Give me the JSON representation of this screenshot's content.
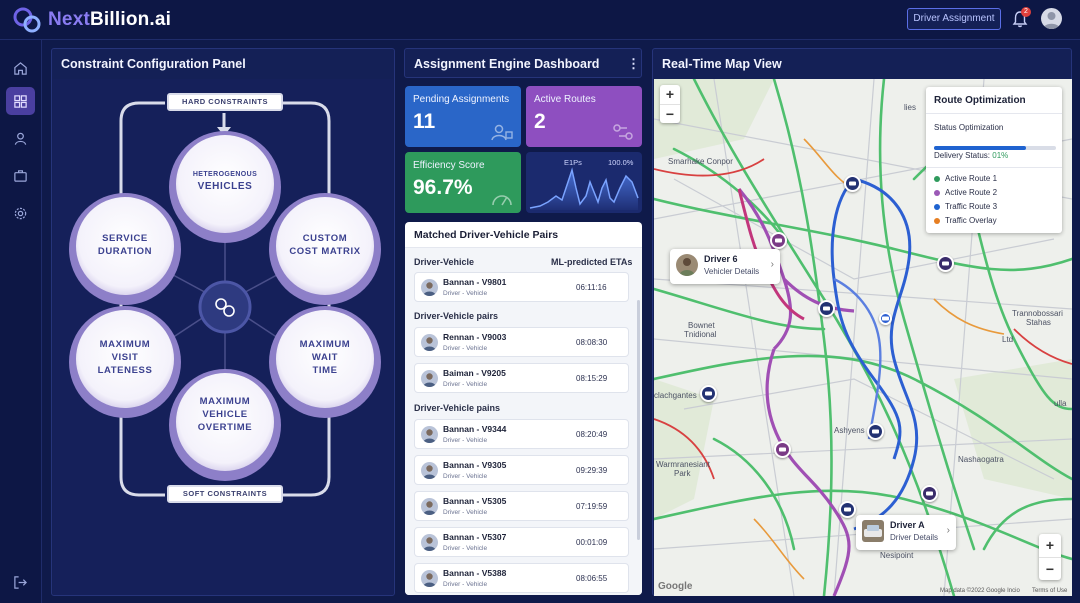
{
  "app": {
    "logo_text_a": "Next",
    "logo_text_b": "Billion.ai"
  },
  "header": {
    "assign_button": "Driver Assignment",
    "notification_count": "2"
  },
  "sidebar": {
    "items": [
      "home-icon",
      "dashboard-icon",
      "user-icon",
      "briefcase-icon",
      "gear-icon"
    ],
    "logout": "logout-icon"
  },
  "constraint_panel": {
    "title": "Constraint Configuration Panel",
    "hard_label": "HARD CONSTRAINTS",
    "soft_label": "SOFT CONSTRAINTS",
    "circles": {
      "heterogenous": [
        "HETEROGENOUS",
        "VEHICLES"
      ],
      "service": [
        "SERVICE",
        "DURATION"
      ],
      "custom": [
        "CUSTOM",
        "COST MATRIX"
      ],
      "visit": [
        "MAXIMUM",
        "VISIT",
        "LATENESS"
      ],
      "wait": [
        "MAXIMUM",
        "WAIT",
        "TIME"
      ],
      "overtime": [
        "MAXIMUM",
        "VEHICLE",
        "OVERTIME"
      ]
    }
  },
  "engine": {
    "title": "Assignment Engine Dashboard",
    "pending": {
      "label": "Pending Assignments",
      "value": "11"
    },
    "routes": {
      "label": "Active Routes",
      "value": "2"
    },
    "efficiency": {
      "label": "Efficiency Score",
      "value": "96.7%"
    },
    "mini_chart": {
      "label_left": "E1Ps",
      "label_right": "100.0%"
    }
  },
  "matched": {
    "title": "Matched Driver-Vehicle Pairs",
    "section1": "Driver-Vehicle",
    "col_eta": "ML-predicted ETAs",
    "section2": "Driver-Vehicle pairs",
    "section3": "Driver-Vehicle pains",
    "row_sub": "Driver - Vehicle",
    "rows": [
      {
        "name": "Bannan - V9801",
        "time": "06:11:16"
      },
      {
        "name": "Rennan - V9003",
        "time": "08:08:30"
      },
      {
        "name": "Baiman - V9205",
        "time": "08:15:29"
      },
      {
        "name": "Bannan - V9344",
        "time": "08:20:49"
      },
      {
        "name": "Bannan - V9305",
        "time": "09:29:39"
      },
      {
        "name": "Bannan - V5305",
        "time": "07:19:59"
      },
      {
        "name": "Bannan - V5307",
        "time": "00:01:09"
      },
      {
        "name": "Bannan - V5388",
        "time": "08:06:55"
      }
    ]
  },
  "map": {
    "title": "Real-Time Map View",
    "legend": {
      "title": "Route Optimization",
      "status": "Status Optimization",
      "status_progress": 0.75,
      "delivery_label": "Delivery Status:",
      "delivery_value": "01%",
      "items": [
        {
          "label": "Active Route 1",
          "color": "#2e9a5c"
        },
        {
          "label": "Active Route 2",
          "color": "#9b59b6"
        },
        {
          "label": "Traffic Route 3",
          "color": "#1f63d0"
        },
        {
          "label": "Traffic Overlay",
          "color": "#e67e22"
        }
      ]
    },
    "callout1": {
      "name": "Driver 6",
      "sub": "Vehicler Details"
    },
    "callout2": {
      "name": "Driver A",
      "sub": "Driver Details"
    },
    "places": {
      "smarhake": "Smarhake Conpor",
      "bownet": "Bownet",
      "tnidional": "Tnidional",
      "trannobossari": "Trannobossari",
      "stahas": "Stahas",
      "clachgantes": "clachgantes",
      "ashyens": "Ashyens",
      "warmranesiant": "Warmranesiant",
      "park": "Park",
      "nashaogatra": "Nashaogatra",
      "nesipoint": "Nesipoint",
      "lies": "lies",
      "ltd": "Ltd",
      "ulla": "ulla"
    },
    "attribution": "Map data ©2022 Google Incio",
    "terms": "Terms of Use",
    "google": "Google"
  }
}
